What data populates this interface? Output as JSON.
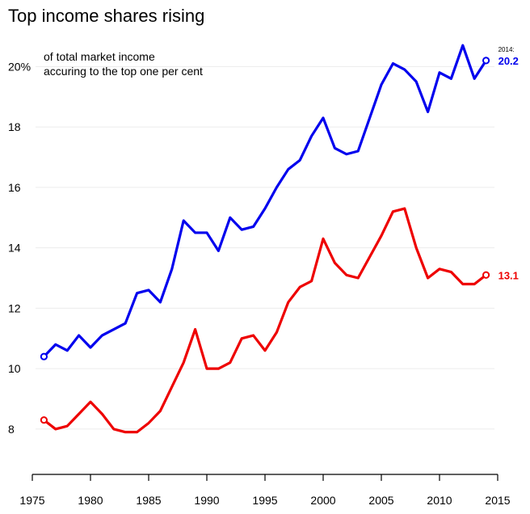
{
  "chart_data": {
    "type": "line",
    "title": "Top income shares rising",
    "subtitle_lines": [
      "of total market income",
      "accuring to the top one per cent"
    ],
    "x_ticks": [
      "1975",
      "1980",
      "1985",
      "1990",
      "1995",
      "2000",
      "2005",
      "2010",
      "2015"
    ],
    "y_ticks": [
      "20%",
      "18",
      "16",
      "14",
      "12",
      "10",
      "8"
    ],
    "xlim": [
      1975,
      2015
    ],
    "ylim": [
      6.5,
      21.4
    ],
    "grid": true,
    "end_year_label": "2014:",
    "x": [
      1976,
      1977,
      1978,
      1979,
      1980,
      1981,
      1982,
      1983,
      1984,
      1985,
      1986,
      1987,
      1988,
      1989,
      1990,
      1991,
      1992,
      1993,
      1994,
      1995,
      1996,
      1997,
      1998,
      1999,
      2000,
      2001,
      2002,
      2003,
      2004,
      2005,
      2006,
      2007,
      2008,
      2009,
      2010,
      2011,
      2012,
      2013,
      2014
    ],
    "series": [
      {
        "color": "#0000ee",
        "end_label": "20.2",
        "values": [
          10.4,
          10.8,
          10.6,
          11.1,
          10.7,
          11.1,
          11.3,
          11.5,
          12.5,
          12.6,
          12.2,
          13.3,
          14.9,
          14.5,
          14.5,
          13.9,
          15.0,
          14.6,
          14.7,
          15.3,
          16.0,
          16.6,
          16.9,
          17.7,
          18.3,
          17.3,
          17.1,
          17.2,
          18.3,
          19.4,
          20.1,
          19.9,
          19.5,
          18.5,
          19.8,
          19.6,
          20.7,
          19.6,
          20.2
        ]
      },
      {
        "color": "#ee0000",
        "end_label": "13.1",
        "values": [
          8.3,
          8.0,
          8.1,
          8.5,
          8.9,
          8.5,
          8.0,
          7.9,
          7.9,
          8.2,
          8.6,
          9.4,
          10.2,
          11.3,
          10.0,
          10.0,
          10.2,
          11.0,
          11.1,
          10.6,
          11.2,
          12.2,
          12.7,
          12.9,
          14.3,
          13.5,
          13.1,
          13.0,
          13.7,
          14.4,
          15.2,
          15.3,
          14.0,
          13.0,
          13.3,
          13.2,
          12.8,
          12.8,
          13.1
        ]
      }
    ]
  }
}
